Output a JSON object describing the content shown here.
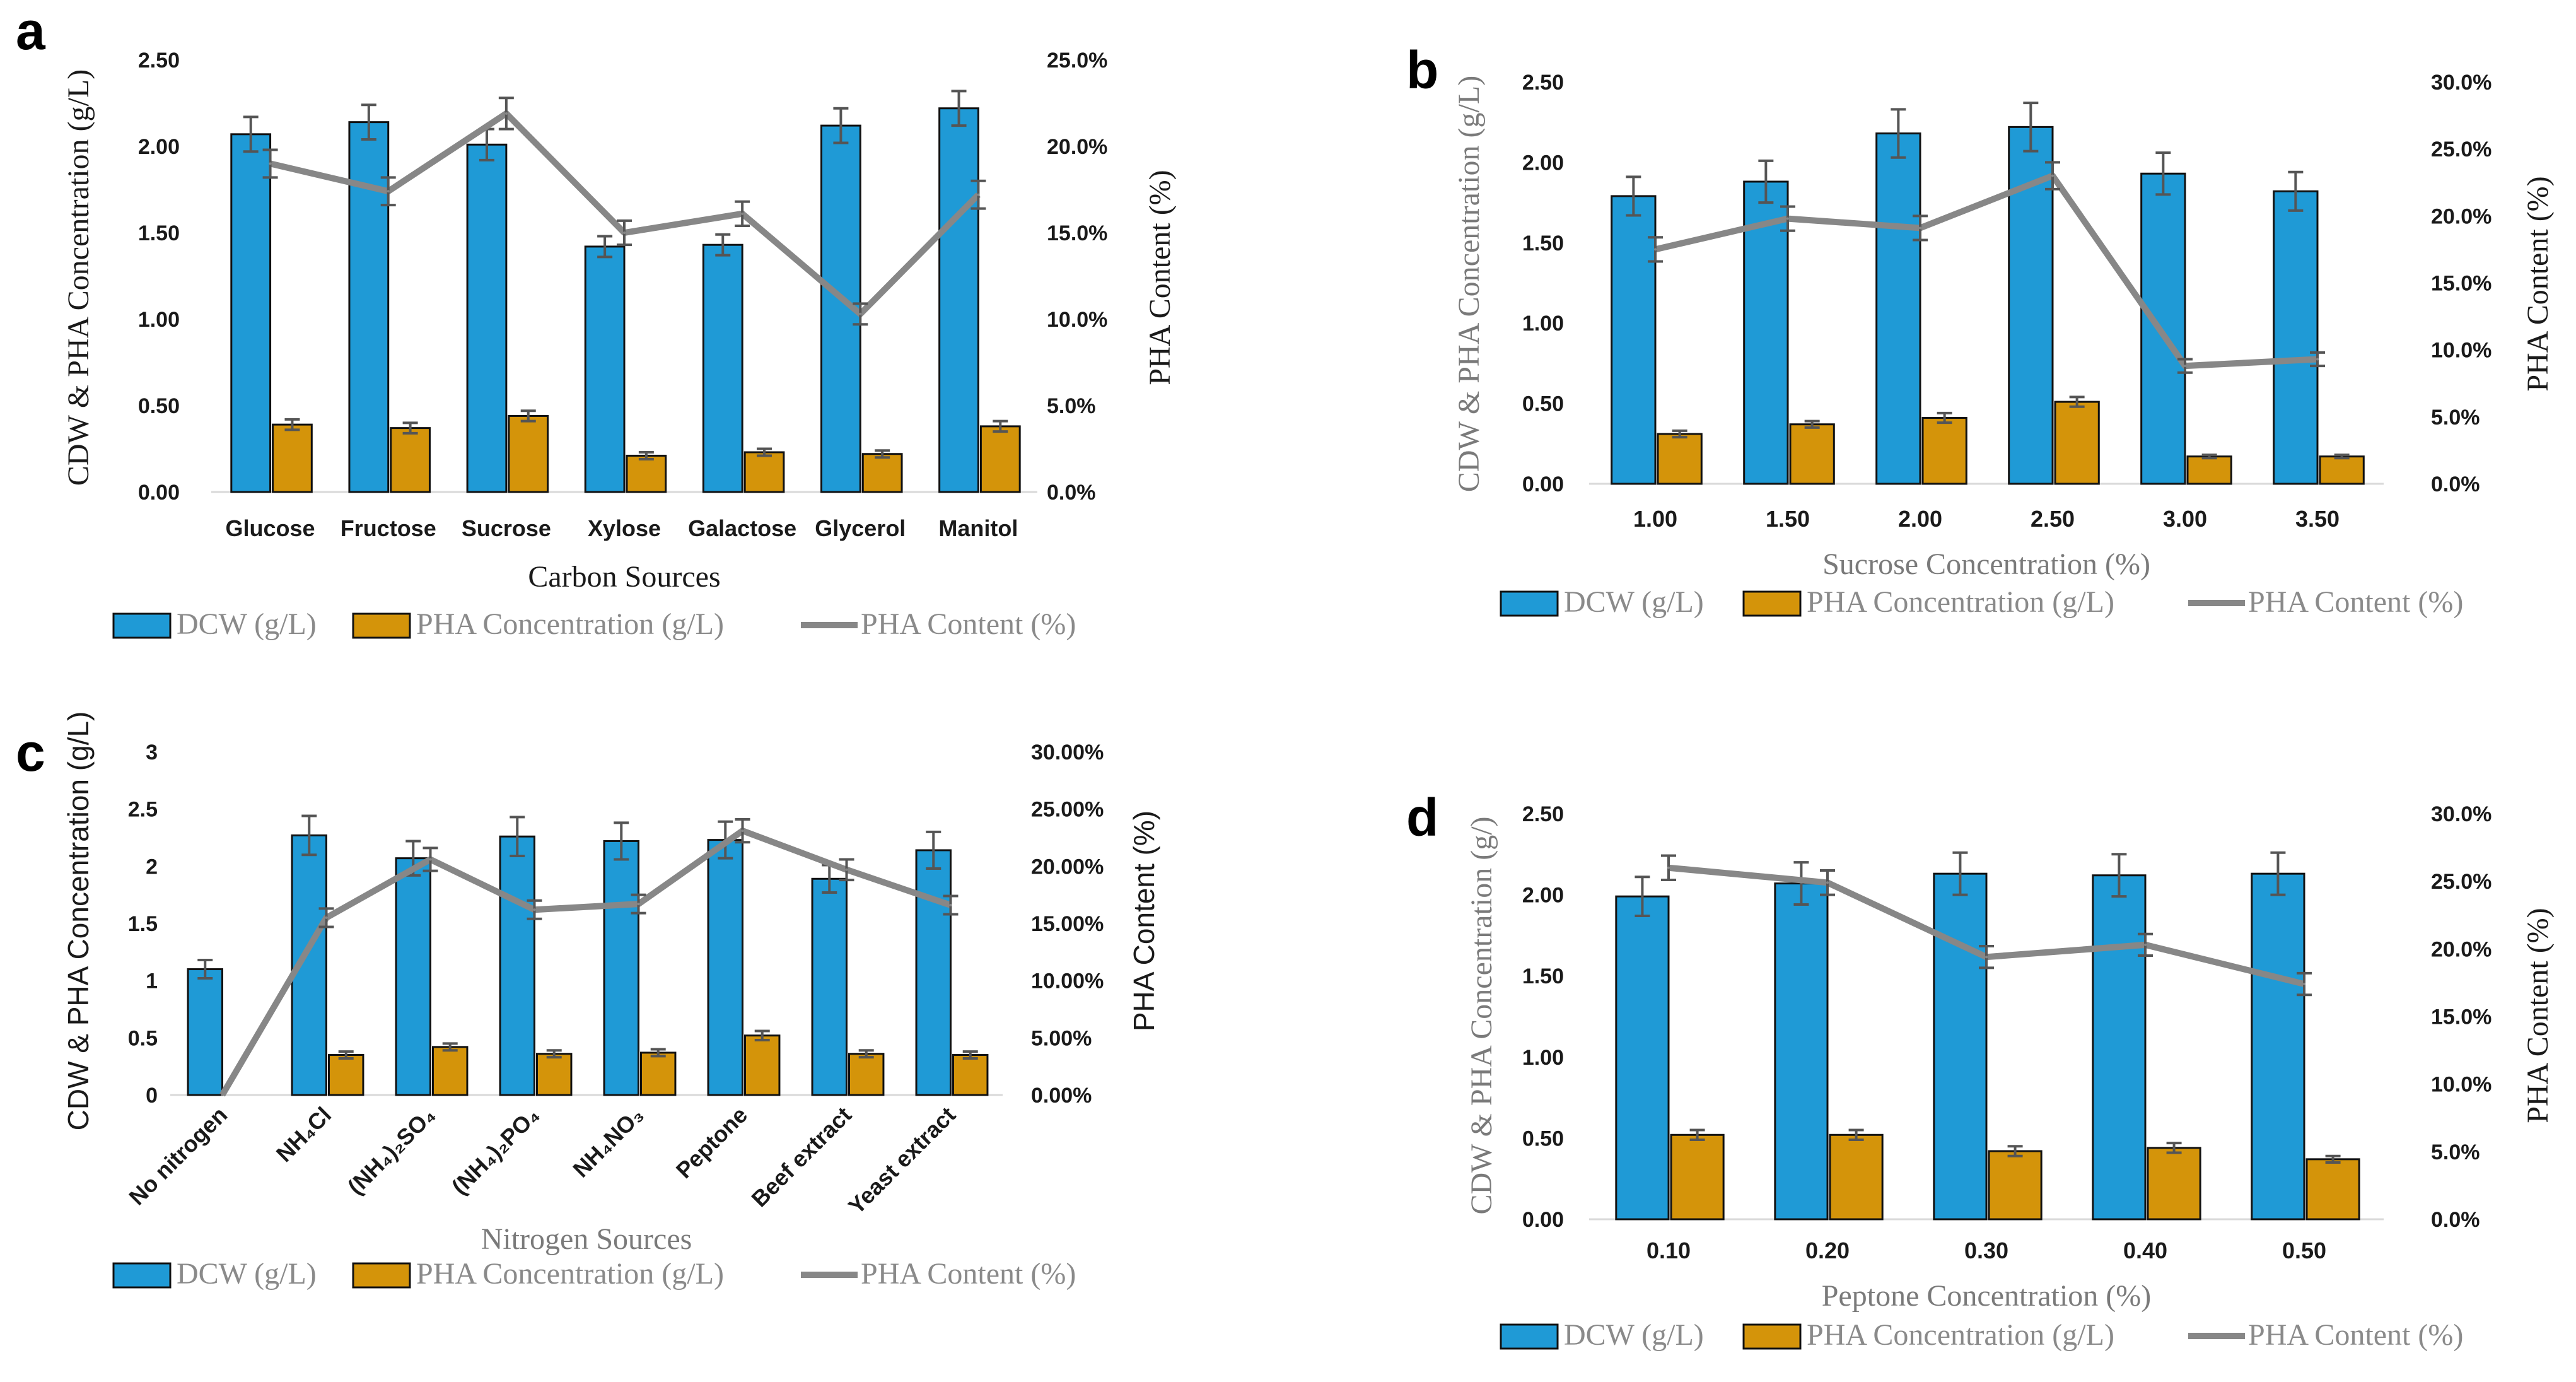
{
  "legend": {
    "dcw": "DCW (g/L)",
    "pha_conc": "PHA Concentration (g/L)",
    "pha_content": "PHA Content (%)"
  },
  "colors": {
    "dcw": "#1f9ad6",
    "pha": "#d4940a",
    "line": "#878787"
  },
  "chart_data": [
    {
      "panel": "a",
      "type": "bar",
      "xlabel": "Carbon Sources",
      "ylabel": "CDW & PHA Concentration (g/L)",
      "y2label": "PHA Content (%)",
      "categories": [
        "Glucose",
        "Fructose",
        "Sucrose",
        "Xylose",
        "Galactose",
        "Glycerol",
        "Manitol"
      ],
      "ylim": [
        0,
        2.5
      ],
      "yticks": [
        "0.00",
        "0.50",
        "1.00",
        "1.50",
        "2.00",
        "2.50"
      ],
      "y2lim": [
        0,
        25
      ],
      "y2ticks": [
        "0.0%",
        "5.0%",
        "10.0%",
        "15.0%",
        "20.0%",
        "25.0%"
      ],
      "series": [
        {
          "name": "DCW (g/L)",
          "values": [
            2.07,
            2.14,
            2.01,
            1.42,
            1.43,
            2.12,
            2.22
          ],
          "errors": [
            0.1,
            0.1,
            0.09,
            0.06,
            0.06,
            0.1,
            0.1
          ]
        },
        {
          "name": "PHA Concentration (g/L)",
          "values": [
            0.39,
            0.37,
            0.44,
            0.21,
            0.23,
            0.22,
            0.38
          ],
          "errors": [
            0.03,
            0.03,
            0.03,
            0.02,
            0.02,
            0.02,
            0.03
          ]
        },
        {
          "name": "PHA Content (%)",
          "values": [
            19.0,
            17.4,
            21.9,
            15.0,
            16.1,
            10.3,
            17.2
          ],
          "errors": [
            0.8,
            0.8,
            0.9,
            0.7,
            0.7,
            0.6,
            0.8
          ]
        }
      ]
    },
    {
      "panel": "b",
      "type": "bar",
      "xlabel": "Sucrose Concentration (%)",
      "ylabel": "CDW & PHA Concentration (g/L)",
      "y2label": "PHA Content (%)",
      "categories": [
        "1.00",
        "1.50",
        "2.00",
        "2.50",
        "3.00",
        "3.50"
      ],
      "ylim": [
        0,
        2.5
      ],
      "yticks": [
        "0.00",
        "0.50",
        "1.00",
        "1.50",
        "2.00",
        "2.50"
      ],
      "y2lim": [
        0,
        30
      ],
      "y2ticks": [
        "0.0%",
        "5.0%",
        "10.0%",
        "15.0%",
        "20.0%",
        "25.0%",
        "30.0%"
      ],
      "series": [
        {
          "name": "DCW (g/L)",
          "values": [
            1.79,
            1.88,
            2.18,
            2.22,
            1.93,
            1.82
          ],
          "errors": [
            0.12,
            0.13,
            0.15,
            0.15,
            0.13,
            0.12
          ]
        },
        {
          "name": "PHA Concentration (g/L)",
          "values": [
            0.31,
            0.37,
            0.41,
            0.51,
            0.17,
            0.17
          ],
          "errors": [
            0.02,
            0.02,
            0.03,
            0.03,
            0.01,
            0.01
          ]
        },
        {
          "name": "PHA Content (%)",
          "values": [
            17.5,
            19.8,
            19.1,
            23.0,
            8.8,
            9.3
          ],
          "errors": [
            0.9,
            0.9,
            0.9,
            1.0,
            0.5,
            0.5
          ]
        }
      ]
    },
    {
      "panel": "c",
      "type": "bar",
      "xlabel": "Nitrogen Sources",
      "ylabel": "CDW & PHA Concentration  (g/L)",
      "y2label": "PHA Content  (%)",
      "categories": [
        "No nitrogen",
        "NH₄Cl",
        "(NH₄)₂SO₄",
        "(NH₄)₂PO₄",
        "NH₄NO₃",
        "Peptone",
        "Beef extract",
        "Yeast extract"
      ],
      "ylim": [
        0,
        3
      ],
      "yticks": [
        "0",
        "0.5",
        "1",
        "1.5",
        "2",
        "2.5",
        "3"
      ],
      "y2lim": [
        0,
        30
      ],
      "y2ticks": [
        "0.00%",
        "5.00%",
        "10.00%",
        "15.00%",
        "20.00%",
        "25.00%",
        "30.00%"
      ],
      "series": [
        {
          "name": "DCW (g/L)",
          "values": [
            1.1,
            2.27,
            2.07,
            2.26,
            2.22,
            2.23,
            1.89,
            2.14
          ],
          "errors": [
            0.08,
            0.17,
            0.15,
            0.17,
            0.16,
            0.16,
            0.12,
            0.16
          ]
        },
        {
          "name": "PHA Concentration (g/L)",
          "values": [
            0,
            0.35,
            0.42,
            0.36,
            0.37,
            0.52,
            0.36,
            0.35
          ],
          "errors": [
            0,
            0.03,
            0.03,
            0.03,
            0.03,
            0.04,
            0.03,
            0.03
          ]
        },
        {
          "name": "PHA Content (%)",
          "values": [
            0.0,
            15.5,
            20.6,
            16.2,
            16.7,
            23.1,
            19.7,
            16.6
          ],
          "errors": [
            0,
            0.8,
            1.0,
            0.8,
            0.8,
            1.0,
            0.9,
            0.8
          ]
        }
      ]
    },
    {
      "panel": "d",
      "type": "bar",
      "xlabel": "Peptone Concentration (%)",
      "ylabel": "CDW & PHA Concentration (g/)",
      "y2label": "PHA Content (%)",
      "categories": [
        "0.10",
        "0.20",
        "0.30",
        "0.40",
        "0.50"
      ],
      "ylim": [
        0,
        2.5
      ],
      "yticks": [
        "0.00",
        "0.50",
        "1.00",
        "1.50",
        "2.00",
        "2.50"
      ],
      "y2lim": [
        0,
        30
      ],
      "y2ticks": [
        "0.0%",
        "5.0%",
        "10.0%",
        "15.0%",
        "20.0%",
        "25.0%",
        "30.0%"
      ],
      "series": [
        {
          "name": "DCW (g/L)",
          "values": [
            1.99,
            2.07,
            2.13,
            2.12,
            2.13
          ],
          "errors": [
            0.12,
            0.13,
            0.13,
            0.13,
            0.13
          ]
        },
        {
          "name": "PHA Concentration (g/L)",
          "values": [
            0.52,
            0.52,
            0.42,
            0.44,
            0.37
          ],
          "errors": [
            0.03,
            0.03,
            0.03,
            0.03,
            0.02
          ]
        },
        {
          "name": "PHA Content (%)",
          "values": [
            26.0,
            24.9,
            19.4,
            20.3,
            17.4
          ],
          "errors": [
            0.9,
            0.9,
            0.8,
            0.8,
            0.8
          ]
        }
      ]
    }
  ]
}
